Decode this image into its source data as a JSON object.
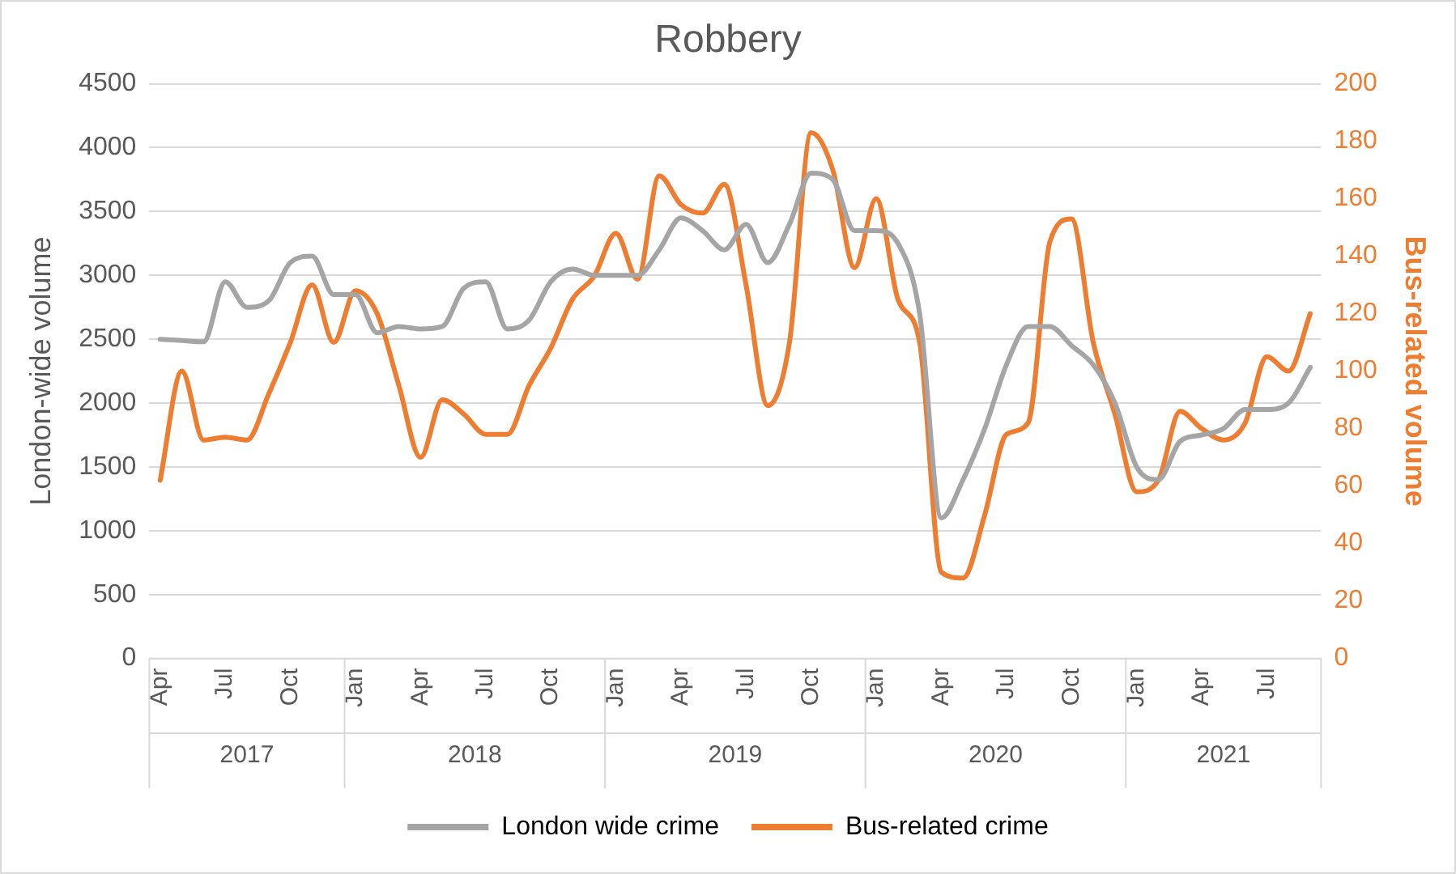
{
  "chart_data": {
    "type": "line",
    "title": "Robbery",
    "ylabel": "London-wide volume",
    "y2label": "Bus-related volume",
    "categories": [
      "Apr",
      null,
      null,
      "Jul",
      null,
      null,
      "Oct",
      null,
      null,
      "Jan",
      null,
      null,
      "Apr",
      null,
      null,
      "Jul",
      null,
      null,
      "Oct",
      null,
      null,
      "Jan",
      null,
      null,
      "Apr",
      null,
      null,
      "Jul",
      null,
      null,
      "Oct",
      null,
      null,
      "Jan",
      null,
      null,
      "Apr",
      null,
      null,
      "Jul",
      null,
      null,
      "Oct",
      null,
      null,
      "Jan",
      null,
      null,
      "Apr",
      null,
      null,
      "Jul",
      null,
      null
    ],
    "annotations": [
      "2017",
      "2018",
      "2019",
      "2020",
      "2021"
    ],
    "series": [
      {
        "name": "London wide crime",
        "color": "#a5a5a5",
        "values": [
          2500,
          2490,
          2480,
          2950,
          2750,
          2800,
          3100,
          3150,
          2850,
          2850,
          2550,
          2600,
          2580,
          2600,
          2900,
          2950,
          2580,
          2650,
          2950,
          3050,
          3000,
          3000,
          3000,
          3200,
          3450,
          3350,
          3200,
          3400,
          3100,
          3400,
          3800,
          3750,
          3350,
          3350,
          3250,
          2700,
          1100,
          1400,
          1800,
          2300,
          2600,
          2600,
          2450,
          2300,
          2000,
          1500,
          1400,
          1700,
          1750,
          1800,
          1950,
          1950,
          2000,
          2280
        ]
      },
      {
        "name": "Bus-related crime",
        "color": "#ed7d31",
        "axis": "y2",
        "values": [
          62,
          100,
          76,
          77,
          76,
          92,
          110,
          130,
          110,
          128,
          120,
          95,
          70,
          90,
          85,
          78,
          78,
          95,
          108,
          125,
          133,
          148,
          132,
          168,
          158,
          155,
          165,
          130,
          88,
          110,
          183,
          170,
          136,
          160,
          125,
          110,
          30,
          28,
          50,
          78,
          82,
          145,
          153,
          110,
          85,
          58,
          62,
          86,
          80,
          76,
          82,
          105,
          100,
          120
        ]
      }
    ],
    "ylim": [
      0,
      4500
    ],
    "yticks": [
      0,
      500,
      1000,
      1500,
      2000,
      2500,
      3000,
      3500,
      4000,
      4500
    ],
    "y2lim": [
      0,
      200
    ],
    "y2ticks": [
      0,
      20,
      40,
      60,
      80,
      100,
      120,
      140,
      160,
      180,
      200
    ],
    "grid": "y",
    "legend": "bottom",
    "marker": "none",
    "line_style": "solid"
  }
}
